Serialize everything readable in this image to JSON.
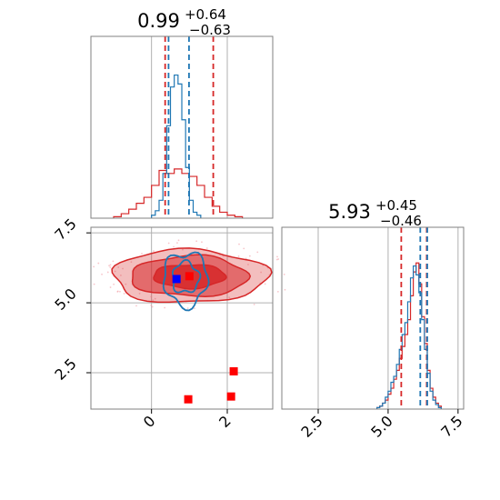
{
  "figure": {
    "type": "corner-plot"
  },
  "colors": {
    "primary_series": "#1f77b4",
    "secondary_series": "#d62728",
    "marker_blue": "#0000ff",
    "marker_red": "#ff0000",
    "grid": "#b0b0b0",
    "frame": "#808080"
  },
  "chart_data": [
    {
      "panel": "top-left",
      "type": "histogram",
      "title_main": "0.99",
      "title_sup": "+0.64",
      "title_sub": "−0.63",
      "xlim": [
        -1.6,
        3.2
      ],
      "grid_x": [
        0,
        2
      ],
      "show_tick_labels": false,
      "blue_quantiles": [
        0.45,
        0.99
      ],
      "red_quantiles": [
        0.36,
        1.63
      ],
      "blue_hist": {
        "bin_start": 0.0,
        "bin_width": 0.1,
        "counts": [
          0.02,
          0.05,
          0.12,
          0.3,
          0.62,
          0.88,
          0.96,
          0.9,
          0.66,
          0.34,
          0.12,
          0.04,
          0.02
        ]
      },
      "red_hist": {
        "bin_start": -1.0,
        "bin_width": 0.2,
        "counts": [
          0.01,
          0.03,
          0.06,
          0.1,
          0.14,
          0.22,
          0.32,
          0.3,
          0.33,
          0.3,
          0.28,
          0.22,
          0.14,
          0.08,
          0.04,
          0.02,
          0.01
        ]
      }
    },
    {
      "panel": "bottom-left",
      "type": "2d-contour",
      "xlim": [
        -1.6,
        3.2
      ],
      "ylim": [
        1.2,
        7.7
      ],
      "x_ticks": [
        {
          "value": 0,
          "label": "0"
        },
        {
          "value": 2,
          "label": "2"
        }
      ],
      "y_ticks": [
        {
          "value": 2.5,
          "label": "2.5"
        },
        {
          "value": 5.0,
          "label": "5.0"
        },
        {
          "value": 7.5,
          "label": "7.5"
        }
      ],
      "red_contours": [
        {
          "cx": 1.0,
          "cy": 5.95,
          "rx": 0.95,
          "ry": 0.42,
          "fill_opacity": 0.85
        },
        {
          "cx": 1.0,
          "cy": 5.95,
          "rx": 1.55,
          "ry": 0.72,
          "fill_opacity": 0.55
        },
        {
          "cx": 1.0,
          "cy": 5.95,
          "rx": 2.05,
          "ry": 0.95,
          "fill_opacity": 0.3
        }
      ],
      "blue_contours": [
        {
          "cx": 0.9,
          "cy": 5.9,
          "rx": 0.35,
          "ry": 0.55
        },
        {
          "cx": 0.9,
          "cy": 5.85,
          "rx": 0.58,
          "ry": 0.95
        }
      ],
      "blue_marker": {
        "x": 0.66,
        "y": 5.85
      },
      "red_markers": [
        {
          "x": 1.0,
          "y": 5.95
        },
        {
          "x": 2.17,
          "y": 2.55
        },
        {
          "x": 2.1,
          "y": 1.65
        },
        {
          "x": 0.97,
          "y": 1.55
        }
      ]
    },
    {
      "panel": "bottom-right",
      "type": "histogram",
      "title_main": "5.93",
      "title_sup": "+0.45",
      "title_sub": "−0.46",
      "xlim": [
        1.2,
        7.7
      ],
      "x_ticks": [
        {
          "value": 2.5,
          "label": "2.5"
        },
        {
          "value": 5.0,
          "label": "5.0"
        },
        {
          "value": 7.5,
          "label": "7.5"
        }
      ],
      "blue_quantiles": [
        6.15,
        6.4
      ],
      "red_quantiles": [
        5.47,
        6.38
      ],
      "blue_hist": {
        "bin_start": 4.6,
        "bin_width": 0.1,
        "counts": [
          0.01,
          0.02,
          0.04,
          0.08,
          0.12,
          0.18,
          0.22,
          0.3,
          0.4,
          0.5,
          0.58,
          0.72,
          0.88,
          0.96,
          0.9,
          0.78,
          0.6,
          0.4,
          0.24,
          0.12,
          0.06,
          0.03,
          0.01
        ]
      },
      "red_hist": {
        "bin_start": 4.6,
        "bin_width": 0.1,
        "counts": [
          0.01,
          0.02,
          0.04,
          0.06,
          0.1,
          0.14,
          0.2,
          0.26,
          0.34,
          0.42,
          0.5,
          0.6,
          0.76,
          0.92,
          0.98,
          0.84,
          0.62,
          0.44,
          0.26,
          0.14,
          0.08,
          0.04,
          0.02
        ]
      }
    }
  ]
}
